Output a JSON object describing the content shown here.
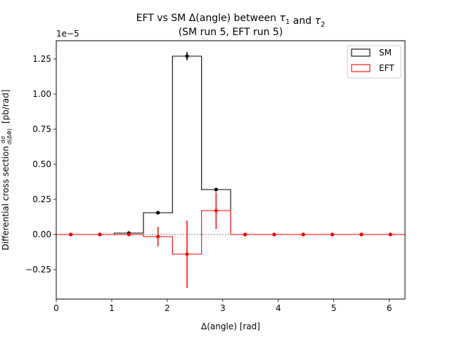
{
  "chart_data": {
    "type": "histogram",
    "title_line1": "EFT vs SM Δ(angle) between τ₁ and τ₂",
    "title_line2": "(SM run 5, EFT run 5)",
    "xlabel": "Δ(angle) [rad]",
    "ylabel": "Differential cross section dσ/d(ΔΦ) [pb/rad]",
    "y_multiplier_label": "1e−5",
    "xlim": [
      0,
      6.2832
    ],
    "ylim": [
      -0.46,
      1.38
    ],
    "x_ticks": [
      0,
      1,
      2,
      3,
      4,
      5,
      6
    ],
    "y_ticks": [
      -0.25,
      0.0,
      0.25,
      0.5,
      0.75,
      1.0,
      1.25
    ],
    "y_tick_labels": [
      "−0.25",
      "0.00",
      "0.25",
      "0.50",
      "0.75",
      "1.00",
      "1.25"
    ],
    "zero_line": true,
    "grid": false,
    "legend_position": "top-right",
    "bin_edges": [
      0,
      0.5236,
      1.0472,
      1.5708,
      2.0944,
      2.618,
      3.1416,
      3.6652,
      4.1888,
      4.7124,
      5.236,
      5.7596,
      6.2832
    ],
    "series": [
      {
        "name": "SM",
        "color": "#000000",
        "values": [
          0.0,
          0.0,
          0.01,
          0.155,
          1.27,
          0.32,
          0.0,
          0.0,
          0.0,
          0.0,
          0.0,
          0.0
        ],
        "errors": [
          0.0,
          0.0,
          0.005,
          0.01,
          0.03,
          0.01,
          0.0,
          0.0,
          0.0,
          0.0,
          0.0,
          0.0
        ]
      },
      {
        "name": "EFT",
        "color": "#ff0000",
        "values": [
          0.0,
          0.0,
          0.0,
          -0.015,
          -0.14,
          0.17,
          0.0,
          0.0,
          0.0,
          0.0,
          0.0,
          0.0
        ],
        "errors": [
          0.0,
          0.0,
          0.005,
          0.07,
          0.24,
          0.13,
          0.0,
          0.0,
          0.0,
          0.0,
          0.0,
          0.0
        ]
      }
    ]
  }
}
